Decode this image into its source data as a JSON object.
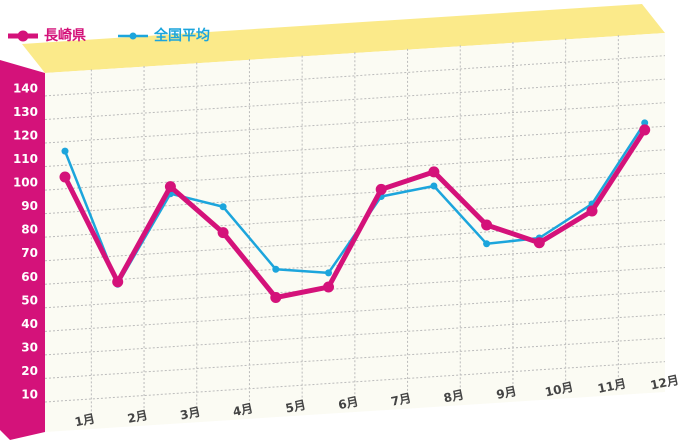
{
  "chart_data": {
    "type": "line",
    "categories": [
      "1月",
      "2月",
      "3月",
      "4月",
      "5月",
      "6月",
      "7月",
      "8月",
      "9月",
      "10月",
      "11月",
      "12月"
    ],
    "series": [
      {
        "name": "長崎県",
        "color": "#d4127a",
        "values": [
          105,
          59,
          98,
          77,
          48,
          51,
          91,
          97,
          73,
          64,
          76,
          109
        ]
      },
      {
        "name": "全国平均",
        "color": "#1ca5dc",
        "values": [
          116,
          58,
          95,
          88,
          60,
          57,
          88,
          91,
          65,
          66,
          79,
          112
        ]
      }
    ],
    "ylim": [
      0,
      150
    ],
    "yticks": [
      10,
      20,
      30,
      40,
      50,
      60,
      70,
      80,
      90,
      100,
      110,
      120,
      130,
      140
    ],
    "grid": true
  }
}
